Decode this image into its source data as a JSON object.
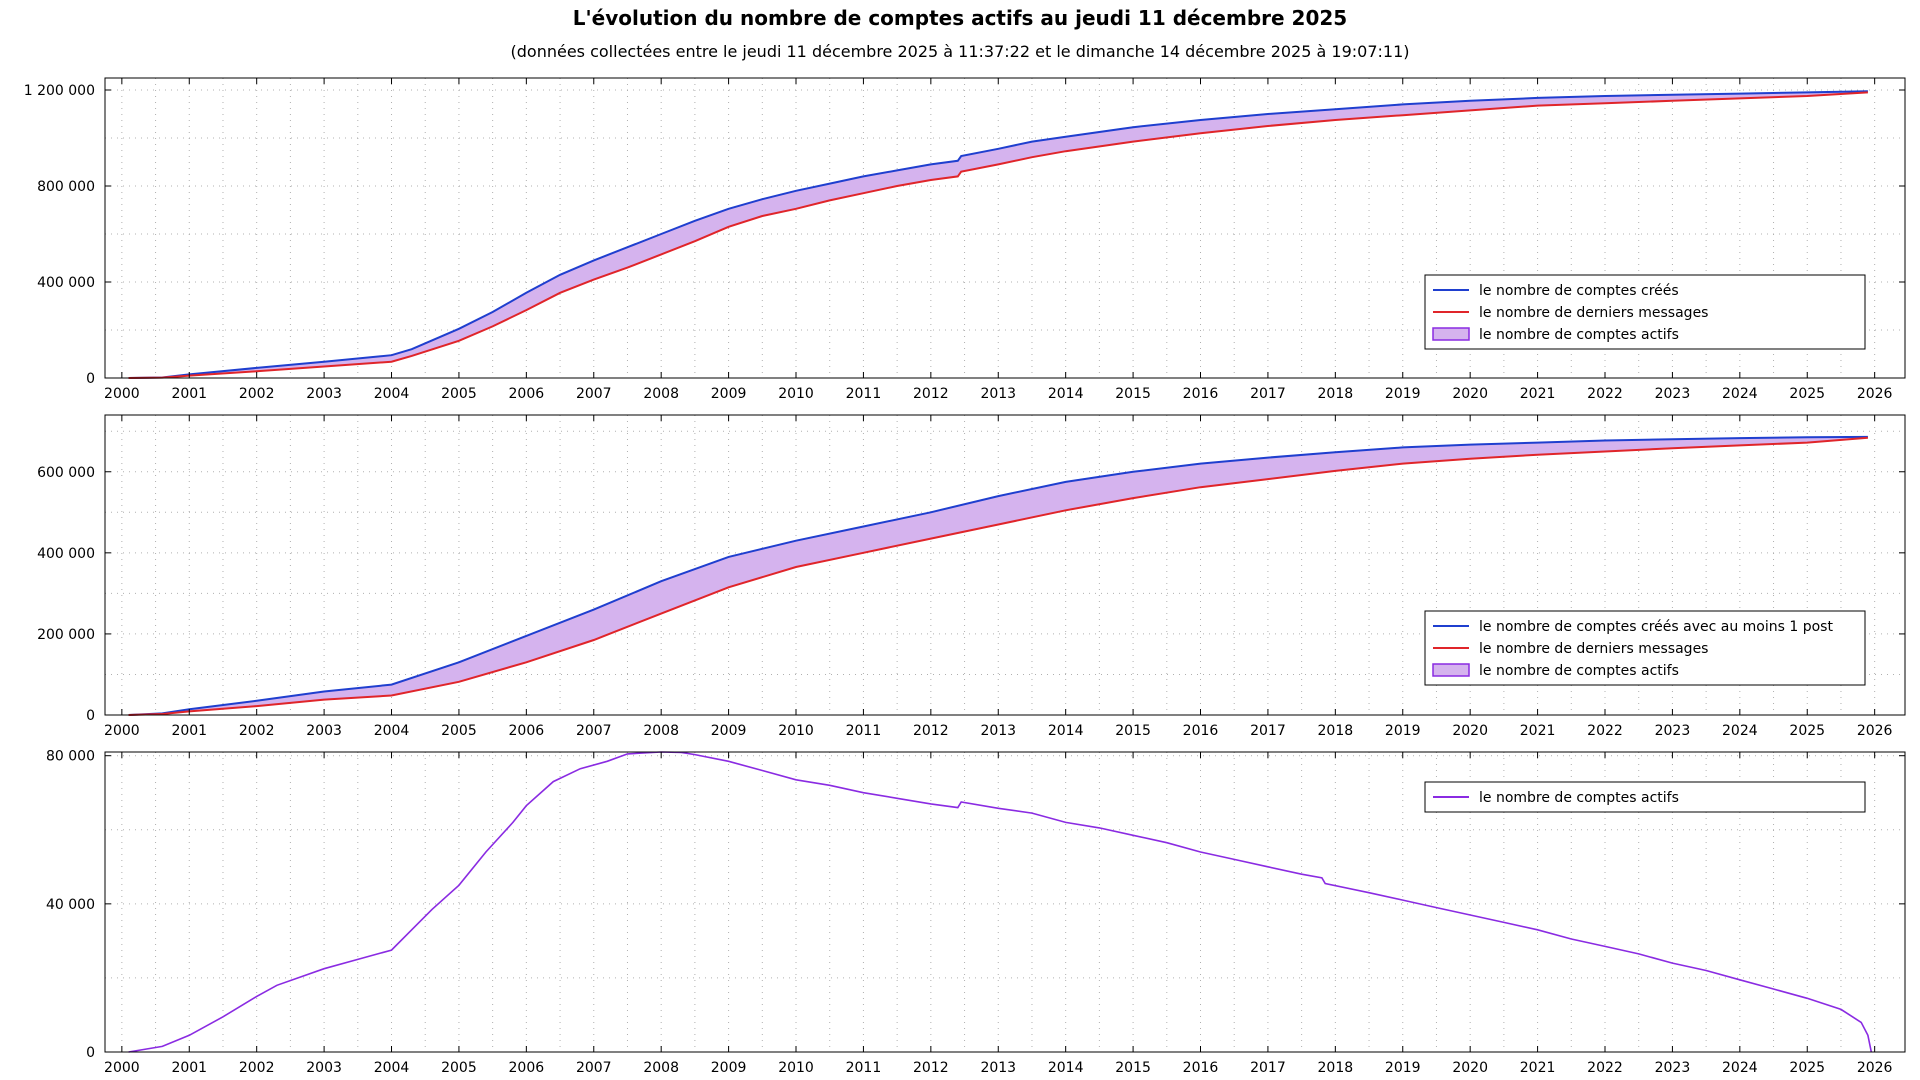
{
  "title": "L'évolution du nombre de comptes actifs au jeudi 11 décembre 2025",
  "subtitle": "(données collectées entre le jeudi 11 décembre 2025 à 11:37:22 et le dimanche 14 décembre 2025 à 19:07:11)",
  "colors": {
    "blue": "#1f3fcf",
    "red": "#e0252a",
    "purple": "#8a2be2",
    "fill": "#d5b3ee",
    "grid": "#b0b0b0"
  },
  "chart_data": [
    {
      "type": "area",
      "name": "panel-1",
      "x_ticks": [
        "2000",
        "2001",
        "2002",
        "2003",
        "2004",
        "2005",
        "2006",
        "2007",
        "2008",
        "2009",
        "2010",
        "2011",
        "2012",
        "2013",
        "2014",
        "2015",
        "2016",
        "2017",
        "2018",
        "2019",
        "2020",
        "2021",
        "2022",
        "2023",
        "2024",
        "2025",
        "2026"
      ],
      "xlim": [
        1999.75,
        2026.45
      ],
      "ylim": [
        0,
        1250000
      ],
      "y_ticks": [
        0,
        400000,
        800000,
        1200000
      ],
      "y_tick_labels": [
        "0",
        "400 000",
        "800 000",
        "1 200 000"
      ],
      "legend_position": "right",
      "series": [
        {
          "name": "le nombre de comptes créés",
          "role": "top",
          "color": "#1f3fcf",
          "x": [
            2000.1,
            2000.6,
            2001,
            2002,
            2003,
            2004,
            2004.3,
            2005,
            2005.5,
            2006,
            2006.5,
            2007,
            2007.5,
            2008,
            2008.5,
            2009,
            2009.5,
            2010,
            2010.5,
            2011,
            2011.5,
            2012,
            2012.4,
            2012.45,
            2013,
            2013.5,
            2014,
            2015,
            2016,
            2017,
            2018,
            2019,
            2020,
            2021,
            2022,
            2023,
            2024,
            2025,
            2025.9
          ],
          "y": [
            0,
            2000,
            15000,
            42000,
            68000,
            95000,
            120000,
            205000,
            275000,
            355000,
            430000,
            490000,
            545000,
            600000,
            655000,
            705000,
            745000,
            780000,
            810000,
            840000,
            865000,
            890000,
            905000,
            925000,
            955000,
            985000,
            1005000,
            1045000,
            1075000,
            1100000,
            1120000,
            1140000,
            1155000,
            1167000,
            1175000,
            1180000,
            1185000,
            1190000,
            1195000
          ]
        },
        {
          "name": "le nombre de derniers messages",
          "role": "bottom",
          "color": "#e0252a",
          "x": [
            2000.1,
            2000.6,
            2001,
            2002,
            2003,
            2004,
            2004.3,
            2005,
            2005.5,
            2006,
            2006.5,
            2007,
            2007.5,
            2008,
            2008.5,
            2009,
            2009.5,
            2010,
            2010.5,
            2011,
            2011.5,
            2012,
            2012.4,
            2012.45,
            2013,
            2013.5,
            2014,
            2015,
            2016,
            2017,
            2018,
            2019,
            2020,
            2021,
            2022,
            2023,
            2024,
            2025,
            2025.9
          ],
          "y": [
            0,
            1500,
            10000,
            28000,
            48000,
            68000,
            92000,
            155000,
            215000,
            283000,
            355000,
            410000,
            460000,
            515000,
            570000,
            630000,
            675000,
            705000,
            740000,
            770000,
            800000,
            825000,
            840000,
            860000,
            890000,
            920000,
            945000,
            985000,
            1020000,
            1050000,
            1075000,
            1095000,
            1115000,
            1135000,
            1145000,
            1155000,
            1165000,
            1175000,
            1190000
          ]
        },
        {
          "name": "le nombre de comptes actifs",
          "role": "fill",
          "color": "#d5b3ee"
        }
      ]
    },
    {
      "type": "area",
      "name": "panel-2",
      "x_ticks": [
        "2000",
        "2001",
        "2002",
        "2003",
        "2004",
        "2005",
        "2006",
        "2007",
        "2008",
        "2009",
        "2010",
        "2011",
        "2012",
        "2013",
        "2014",
        "2015",
        "2016",
        "2017",
        "2018",
        "2019",
        "2020",
        "2021",
        "2022",
        "2023",
        "2024",
        "2025",
        "2026"
      ],
      "xlim": [
        1999.75,
        2026.45
      ],
      "ylim": [
        0,
        740000
      ],
      "y_ticks": [
        0,
        200000,
        400000,
        600000
      ],
      "y_tick_labels": [
        "0",
        "200 000",
        "400 000",
        "600 000"
      ],
      "legend_position": "right",
      "series": [
        {
          "name": "le nombre de comptes créés avec au moins 1 post",
          "role": "top",
          "color": "#1f3fcf",
          "x": [
            2000.1,
            2000.6,
            2001,
            2002,
            2003,
            2004,
            2005,
            2006,
            2007,
            2008,
            2009,
            2010,
            2011,
            2012,
            2013,
            2014,
            2015,
            2016,
            2017,
            2018,
            2019,
            2020,
            2021,
            2022,
            2023,
            2024,
            2025,
            2025.9
          ],
          "y": [
            0,
            4000,
            14000,
            35000,
            58000,
            75000,
            130000,
            195000,
            260000,
            330000,
            390000,
            430000,
            465000,
            500000,
            540000,
            575000,
            600000,
            620000,
            635000,
            648000,
            660000,
            667000,
            672000,
            677000,
            680000,
            683000,
            685000,
            686000
          ]
        },
        {
          "name": "le nombre de derniers messages",
          "role": "bottom",
          "color": "#e0252a",
          "x": [
            2000.1,
            2000.6,
            2001,
            2002,
            2003,
            2004,
            2005,
            2006,
            2007,
            2008,
            2009,
            2010,
            2011,
            2012,
            2013,
            2014,
            2015,
            2016,
            2017,
            2018,
            2019,
            2020,
            2021,
            2022,
            2023,
            2024,
            2025,
            2025.9
          ],
          "y": [
            0,
            2500,
            9000,
            22000,
            38000,
            48000,
            82000,
            130000,
            185000,
            250000,
            315000,
            365000,
            400000,
            435000,
            470000,
            505000,
            535000,
            562000,
            582000,
            602000,
            620000,
            632000,
            642000,
            650000,
            658000,
            665000,
            672000,
            684000
          ]
        },
        {
          "name": "le nombre de comptes actifs",
          "role": "fill",
          "color": "#d5b3ee"
        }
      ]
    },
    {
      "type": "line",
      "name": "panel-3",
      "x_ticks": [
        "2000",
        "2001",
        "2002",
        "2003",
        "2004",
        "2005",
        "2006",
        "2007",
        "2008",
        "2009",
        "2010",
        "2011",
        "2012",
        "2013",
        "2014",
        "2015",
        "2016",
        "2017",
        "2018",
        "2019",
        "2020",
        "2021",
        "2022",
        "2023",
        "2024",
        "2025",
        "2026"
      ],
      "xlim": [
        1999.75,
        2026.45
      ],
      "ylim": [
        0,
        81000
      ],
      "y_ticks": [
        0,
        40000,
        80000
      ],
      "y_tick_labels": [
        "0",
        "40 000",
        "80 000"
      ],
      "legend_position": "top-right",
      "series": [
        {
          "name": "le nombre de comptes actifs",
          "role": "line",
          "color": "#8a2be2",
          "x": [
            2000.1,
            2000.6,
            2001,
            2001.5,
            2002,
            2002.3,
            2003,
            2003.5,
            2004,
            2004.3,
            2004.6,
            2005,
            2005.4,
            2005.8,
            2006,
            2006.4,
            2006.8,
            2007.2,
            2007.5,
            2008,
            2008.3,
            2008.5,
            2009,
            2009.5,
            2010,
            2010.5,
            2011,
            2011.5,
            2012,
            2012.4,
            2012.45,
            2013,
            2013.5,
            2014,
            2014.5,
            2015,
            2015.5,
            2016,
            2016.5,
            2017,
            2017.5,
            2017.8,
            2017.85,
            2018.5,
            2019,
            2019.5,
            2020,
            2020.5,
            2021,
            2021.5,
            2022,
            2022.5,
            2023,
            2023.5,
            2024,
            2024.5,
            2025,
            2025.5,
            2025.8,
            2025.9,
            2025.95
          ],
          "y": [
            0,
            1500,
            4500,
            9500,
            15000,
            18000,
            22500,
            25000,
            27500,
            33000,
            38500,
            45000,
            54000,
            62000,
            66500,
            73000,
            76500,
            78500,
            80500,
            81000,
            80900,
            80300,
            78500,
            76000,
            73500,
            72000,
            70000,
            68500,
            67000,
            66000,
            67500,
            65800,
            64500,
            62000,
            60500,
            58500,
            56500,
            54000,
            52000,
            50000,
            48000,
            47000,
            45500,
            43000,
            41000,
            39000,
            37000,
            35000,
            33000,
            30500,
            28500,
            26500,
            24000,
            22000,
            19500,
            17000,
            14500,
            11500,
            8000,
            4500,
            0
          ]
        }
      ]
    }
  ]
}
